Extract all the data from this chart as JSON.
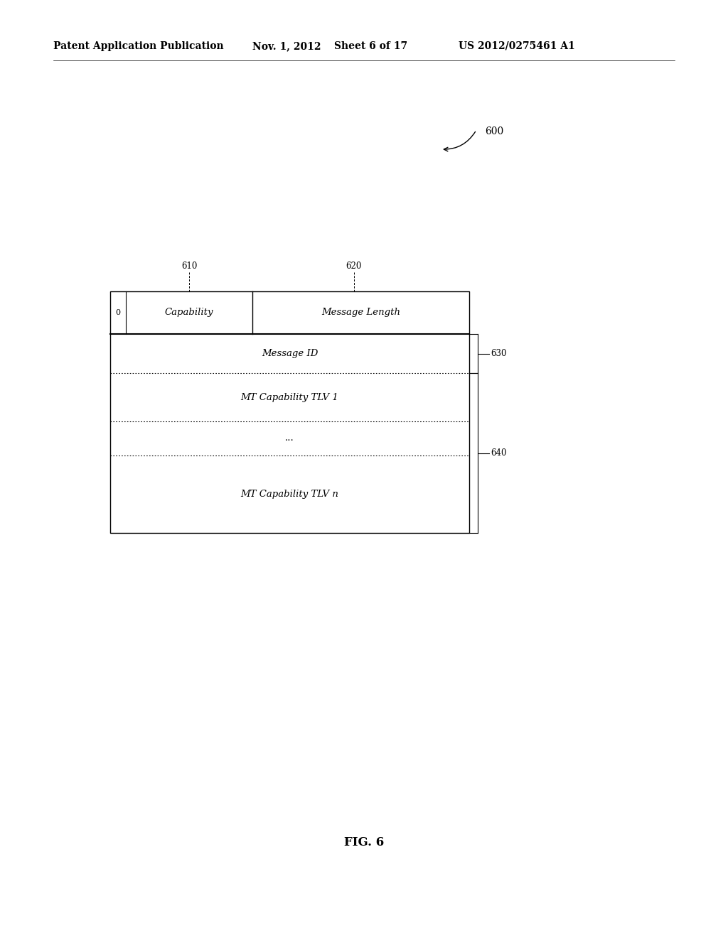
{
  "bg_color": "#ffffff",
  "header_text": "Patent Application Publication",
  "header_date": "Nov. 1, 2012",
  "header_sheet": "Sheet 6 of 17",
  "header_patent": "US 2012/0275461 A1",
  "fig_label": "FIG. 6",
  "fig_number": "600",
  "box_label_610": "610",
  "box_label_620": "620",
  "box_label_630": "630",
  "box_label_640": "640",
  "row0_left_label": "0",
  "row0_col1_text": "Capability",
  "row0_col2_text": "Message Length",
  "row1_text": "Message ID",
  "row2_text": "MT Capability TLV 1",
  "row3_text": "...",
  "row4_text": "MT Capability TLV n",
  "font_size_header": 10,
  "font_size_label": 8.5,
  "font_size_cell": 9.5,
  "font_size_fig": 12,
  "font_size_ref": 10
}
